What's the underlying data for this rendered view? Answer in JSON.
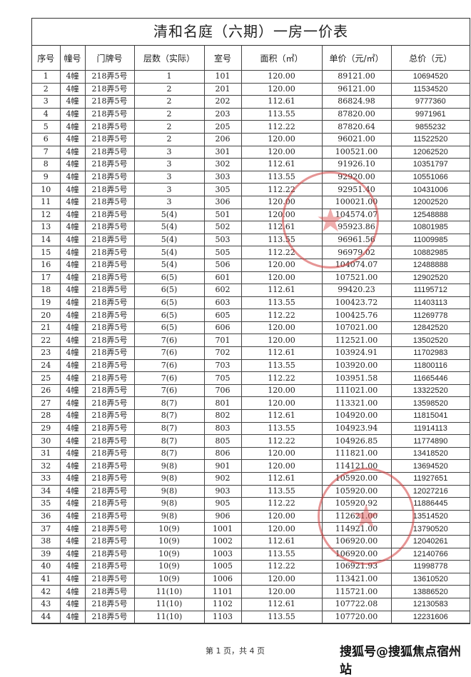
{
  "title": "清和名庭（六期）一房一价表",
  "headers": [
    "序号",
    "幢号",
    "门牌号",
    "层数（实际）",
    "室号",
    "面积（㎡）",
    "单价（元/㎡）",
    "总价（元）"
  ],
  "rows": [
    [
      "1",
      "4幢",
      "218弄5号",
      "1",
      "101",
      "120.00",
      "89121.00",
      "10694520"
    ],
    [
      "2",
      "4幢",
      "218弄5号",
      "2",
      "201",
      "120.00",
      "96121.00",
      "11534520"
    ],
    [
      "3",
      "4幢",
      "218弄5号",
      "2",
      "202",
      "112.61",
      "86824.98",
      "9777360"
    ],
    [
      "4",
      "4幢",
      "218弄5号",
      "2",
      "203",
      "113.55",
      "87820.00",
      "9971961"
    ],
    [
      "5",
      "4幢",
      "218弄5号",
      "2",
      "205",
      "112.22",
      "87820.64",
      "9855232"
    ],
    [
      "6",
      "4幢",
      "218弄5号",
      "2",
      "206",
      "120.00",
      "96021.00",
      "11522520"
    ],
    [
      "7",
      "4幢",
      "218弄5号",
      "3",
      "301",
      "120.00",
      "100521.00",
      "12062520"
    ],
    [
      "8",
      "4幢",
      "218弄5号",
      "3",
      "302",
      "112.61",
      "91926.10",
      "10351797"
    ],
    [
      "9",
      "4幢",
      "218弄5号",
      "3",
      "303",
      "113.55",
      "92920.00",
      "10551066"
    ],
    [
      "10",
      "4幢",
      "218弄5号",
      "3",
      "305",
      "112.22",
      "92951.40",
      "10431006"
    ],
    [
      "11",
      "4幢",
      "218弄5号",
      "3",
      "306",
      "120.00",
      "100021.00",
      "12002520"
    ],
    [
      "12",
      "4幢",
      "218弄5号",
      "5(4)",
      "501",
      "120.00",
      "104574.07",
      "12548888"
    ],
    [
      "13",
      "4幢",
      "218弄5号",
      "5(4)",
      "502",
      "112.61",
      "95923.86",
      "10801985"
    ],
    [
      "14",
      "4幢",
      "218弄5号",
      "5(4)",
      "503",
      "113.55",
      "96961.56",
      "11009985"
    ],
    [
      "15",
      "4幢",
      "218弄5号",
      "5(4)",
      "505",
      "112.22",
      "96979.02",
      "10882985"
    ],
    [
      "16",
      "4幢",
      "218弄5号",
      "5(4)",
      "506",
      "120.00",
      "104074.07",
      "12488888"
    ],
    [
      "17",
      "4幢",
      "218弄5号",
      "6(5)",
      "601",
      "120.00",
      "107521.00",
      "12902520"
    ],
    [
      "18",
      "4幢",
      "218弄5号",
      "6(5)",
      "602",
      "112.61",
      "99420.23",
      "11195712"
    ],
    [
      "19",
      "4幢",
      "218弄5号",
      "6(5)",
      "603",
      "113.55",
      "100423.72",
      "11403113"
    ],
    [
      "20",
      "4幢",
      "218弄5号",
      "6(5)",
      "605",
      "112.22",
      "100425.76",
      "11269778"
    ],
    [
      "21",
      "4幢",
      "218弄5号",
      "6(5)",
      "606",
      "120.00",
      "107021.00",
      "12842520"
    ],
    [
      "22",
      "4幢",
      "218弄5号",
      "7(6)",
      "701",
      "120.00",
      "112521.00",
      "13502520"
    ],
    [
      "23",
      "4幢",
      "218弄5号",
      "7(6)",
      "702",
      "112.61",
      "103924.91",
      "11702983"
    ],
    [
      "24",
      "4幢",
      "218弄5号",
      "7(6)",
      "703",
      "113.55",
      "103920.00",
      "11800116"
    ],
    [
      "25",
      "4幢",
      "218弄5号",
      "7(6)",
      "705",
      "112.22",
      "103951.58",
      "11665446"
    ],
    [
      "26",
      "4幢",
      "218弄5号",
      "7(6)",
      "706",
      "120.00",
      "111021.00",
      "13322520"
    ],
    [
      "27",
      "4幢",
      "218弄5号",
      "8(7)",
      "801",
      "120.00",
      "113321.00",
      "13598520"
    ],
    [
      "28",
      "4幢",
      "218弄5号",
      "8(7)",
      "802",
      "112.61",
      "104920.00",
      "11815041"
    ],
    [
      "29",
      "4幢",
      "218弄5号",
      "8(7)",
      "803",
      "113.55",
      "104923.94",
      "11914113"
    ],
    [
      "30",
      "4幢",
      "218弄5号",
      "8(7)",
      "805",
      "112.22",
      "104926.85",
      "11774890"
    ],
    [
      "31",
      "4幢",
      "218弄5号",
      "8(7)",
      "806",
      "120.00",
      "111821.00",
      "13418520"
    ],
    [
      "32",
      "4幢",
      "218弄5号",
      "9(8)",
      "901",
      "120.00",
      "114121.00",
      "13694520"
    ],
    [
      "33",
      "4幢",
      "218弄5号",
      "9(8)",
      "902",
      "112.61",
      "105920.00",
      "11927651"
    ],
    [
      "34",
      "4幢",
      "218弄5号",
      "9(8)",
      "903",
      "113.55",
      "105920.00",
      "12027216"
    ],
    [
      "35",
      "4幢",
      "218弄5号",
      "9(8)",
      "905",
      "112.22",
      "105920.92",
      "11886445"
    ],
    [
      "36",
      "4幢",
      "218弄5号",
      "9(8)",
      "906",
      "120.00",
      "112621.00",
      "13514520"
    ],
    [
      "37",
      "4幢",
      "218弄5号",
      "10(9)",
      "1001",
      "120.00",
      "114921.00",
      "13790520"
    ],
    [
      "38",
      "4幢",
      "218弄5号",
      "10(9)",
      "1002",
      "112.61",
      "106920.00",
      "12040261"
    ],
    [
      "39",
      "4幢",
      "218弄5号",
      "10(9)",
      "1003",
      "113.55",
      "106920.00",
      "12140766"
    ],
    [
      "40",
      "4幢",
      "218弄5号",
      "10(9)",
      "1005",
      "112.22",
      "106921.93",
      "11998778"
    ],
    [
      "41",
      "4幢",
      "218弄5号",
      "10(9)",
      "1006",
      "120.00",
      "113421.00",
      "13610520"
    ],
    [
      "42",
      "4幢",
      "218弄5号",
      "11(10)",
      "1101",
      "120.00",
      "115721.00",
      "13886520"
    ],
    [
      "43",
      "4幢",
      "218弄5号",
      "11(10)",
      "1102",
      "112.61",
      "107722.08",
      "12130583"
    ],
    [
      "44",
      "4幢",
      "218弄5号",
      "11(10)",
      "1103",
      "113.55",
      "107720.00",
      "12231606"
    ]
  ],
  "footer": "第 1 页，共 4 页",
  "watermark": "搜狐号@搜狐焦点宿州站",
  "colors": {
    "stamp": "#d23c3c",
    "border": "#333333"
  }
}
